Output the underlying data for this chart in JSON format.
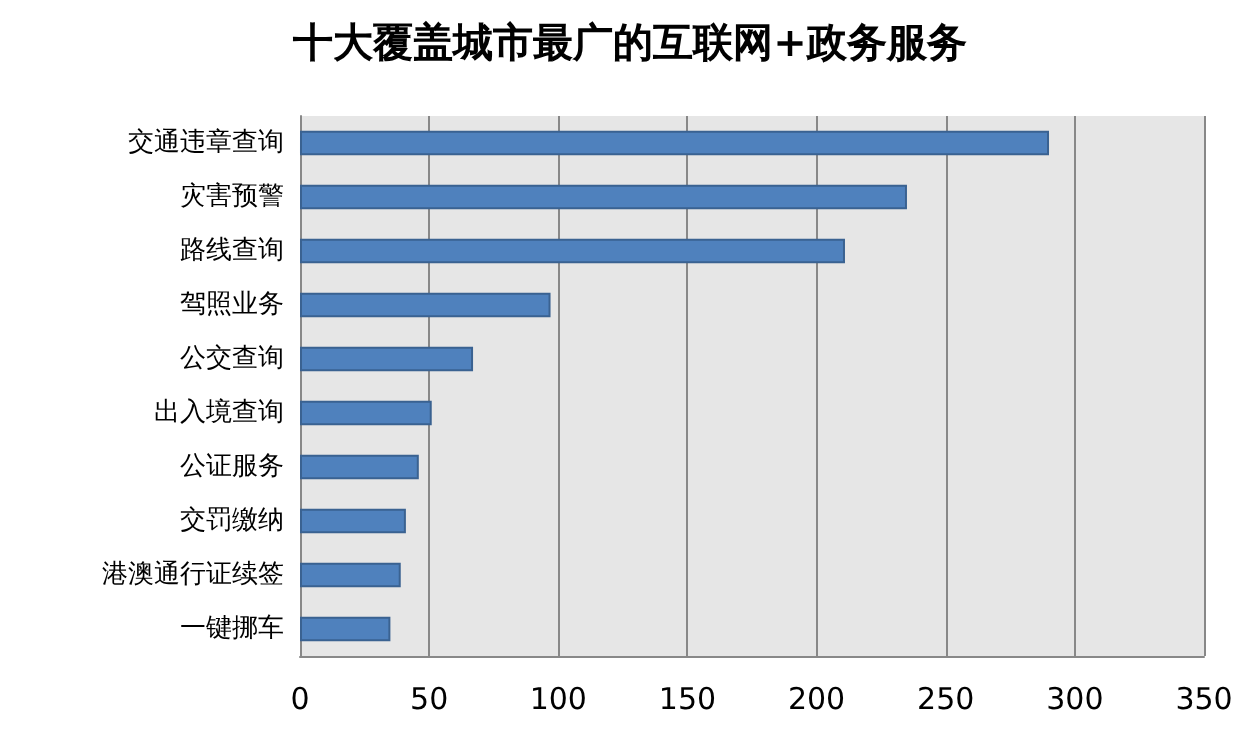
{
  "chart_data": {
    "type": "bar",
    "orientation": "horizontal",
    "title": "十大覆盖城市最广的互联网+政务服务",
    "categories": [
      "交通违章查询",
      "灾害预警",
      "路线查询",
      "驾照业务",
      "公交查询",
      "出入境查询",
      "公证服务",
      "交罚缴纳",
      "港澳通行证续签",
      "一键挪车"
    ],
    "values": [
      290,
      235,
      211,
      97,
      67,
      51,
      46,
      41,
      39,
      35
    ],
    "color": "#4f81bd",
    "xlim": [
      0,
      350
    ],
    "xticks": [
      0,
      50,
      100,
      150,
      200,
      250,
      300,
      350
    ],
    "grid": "x"
  }
}
